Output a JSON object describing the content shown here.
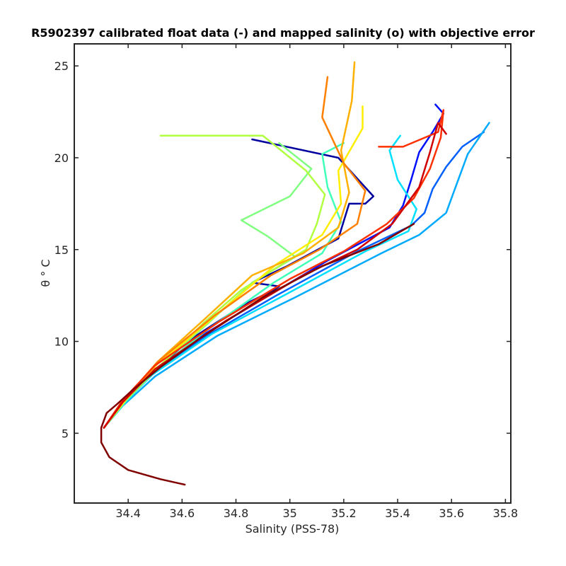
{
  "chart_data": {
    "type": "line",
    "title": "R5902397 calibrated float data (-) and mapped salinity (o) with objective error",
    "xlabel": "Salinity (PSS-78)",
    "ylabel": "θ ° C",
    "xlim": [
      34.2,
      35.82
    ],
    "ylim": [
      1.2,
      26.2
    ],
    "xticks": [
      34.4,
      34.6,
      34.8,
      35,
      35.2,
      35.4,
      35.6,
      35.8
    ],
    "xtick_labels": [
      "34.4",
      "34.6",
      "34.8",
      "35",
      "35.2",
      "35.4",
      "35.6",
      "35.8"
    ],
    "yticks": [
      5,
      10,
      15,
      20,
      25
    ],
    "ytick_labels": [
      "5",
      "10",
      "15",
      "20",
      "25"
    ],
    "grid": false,
    "colormap": "jet (profile number, blue = early, red = late)",
    "series": [
      {
        "color": "#00009f",
        "points": [
          [
            34.31,
            5.3
          ],
          [
            34.37,
            6.5
          ],
          [
            34.47,
            8.0
          ],
          [
            34.62,
            10.0
          ],
          [
            34.83,
            12.0
          ],
          [
            34.94,
            12.8
          ],
          [
            34.96,
            13.0
          ],
          [
            34.86,
            13.2
          ],
          [
            34.99,
            14.1
          ],
          [
            35.18,
            15.6
          ],
          [
            35.22,
            17.5
          ],
          [
            35.28,
            17.5
          ],
          [
            35.31,
            17.9
          ],
          [
            35.18,
            20.0
          ],
          [
            34.86,
            21.0
          ]
        ]
      },
      {
        "color": "#0010ff",
        "points": [
          [
            34.31,
            5.3
          ],
          [
            34.38,
            6.6
          ],
          [
            34.48,
            8.1
          ],
          [
            34.66,
            10.2
          ],
          [
            34.91,
            12.4
          ],
          [
            35.14,
            14.4
          ],
          [
            35.37,
            16.2
          ],
          [
            35.42,
            17.4
          ],
          [
            35.45,
            18.8
          ],
          [
            35.48,
            20.3
          ],
          [
            35.53,
            21.4
          ],
          [
            35.57,
            22.4
          ],
          [
            35.54,
            22.9
          ]
        ]
      },
      {
        "color": "#0060ff",
        "points": [
          [
            34.31,
            5.3
          ],
          [
            34.38,
            6.6
          ],
          [
            34.49,
            8.2
          ],
          [
            34.69,
            10.3
          ],
          [
            34.95,
            12.5
          ],
          [
            35.25,
            14.9
          ],
          [
            35.45,
            16.3
          ],
          [
            35.5,
            17.0
          ],
          [
            35.53,
            18.3
          ],
          [
            35.58,
            19.5
          ],
          [
            35.64,
            20.6
          ],
          [
            35.72,
            21.4
          ]
        ]
      },
      {
        "color": "#00aaff",
        "points": [
          [
            34.31,
            5.3
          ],
          [
            34.38,
            6.5
          ],
          [
            34.5,
            8.1
          ],
          [
            34.73,
            10.3
          ],
          [
            35.02,
            12.4
          ],
          [
            35.34,
            14.8
          ],
          [
            35.48,
            15.8
          ],
          [
            35.58,
            17.0
          ],
          [
            35.62,
            18.6
          ],
          [
            35.66,
            20.2
          ],
          [
            35.74,
            21.9
          ]
        ]
      },
      {
        "color": "#00e0ff",
        "points": [
          [
            34.31,
            5.3
          ],
          [
            34.38,
            6.6
          ],
          [
            34.49,
            8.2
          ],
          [
            34.71,
            10.4
          ],
          [
            34.99,
            12.6
          ],
          [
            35.28,
            14.9
          ],
          [
            35.44,
            16.0
          ],
          [
            35.47,
            17.2
          ],
          [
            35.4,
            18.8
          ],
          [
            35.37,
            20.4
          ],
          [
            35.41,
            21.2
          ]
        ]
      },
      {
        "color": "#40ffb8",
        "points": [
          [
            34.31,
            5.3
          ],
          [
            34.39,
            6.7
          ],
          [
            34.5,
            8.4
          ],
          [
            34.7,
            10.7
          ],
          [
            34.94,
            13.2
          ],
          [
            35.12,
            14.8
          ],
          [
            35.19,
            16.5
          ],
          [
            35.14,
            18.4
          ],
          [
            35.12,
            20.2
          ],
          [
            35.2,
            20.8
          ]
        ]
      },
      {
        "color": "#80ff80",
        "points": [
          [
            34.31,
            5.3
          ],
          [
            34.39,
            6.8
          ],
          [
            34.51,
            8.6
          ],
          [
            34.69,
            10.9
          ],
          [
            34.86,
            13.2
          ],
          [
            35.02,
            14.6
          ],
          [
            34.92,
            15.7
          ],
          [
            34.82,
            16.6
          ],
          [
            35.0,
            17.9
          ],
          [
            35.08,
            19.4
          ],
          [
            34.96,
            20.8
          ]
        ]
      },
      {
        "color": "#b0ff40",
        "points": [
          [
            34.31,
            5.3
          ],
          [
            34.39,
            6.8
          ],
          [
            34.52,
            8.7
          ],
          [
            34.68,
            11.0
          ],
          [
            34.82,
            12.8
          ],
          [
            34.96,
            14.1
          ],
          [
            35.06,
            15.0
          ],
          [
            35.1,
            16.4
          ],
          [
            35.13,
            18.0
          ],
          [
            35.06,
            19.3
          ],
          [
            34.9,
            21.2
          ],
          [
            34.52,
            21.2
          ]
        ]
      },
      {
        "color": "#ffee00",
        "points": [
          [
            34.31,
            5.3
          ],
          [
            34.39,
            6.8
          ],
          [
            34.51,
            8.8
          ],
          [
            34.62,
            10.1
          ],
          [
            34.78,
            12.1
          ],
          [
            34.95,
            14.2
          ],
          [
            35.12,
            15.8
          ],
          [
            35.19,
            17.5
          ],
          [
            35.18,
            19.3
          ],
          [
            35.27,
            21.6
          ],
          [
            35.27,
            22.8
          ]
        ]
      },
      {
        "color": "#ffb000",
        "points": [
          [
            34.31,
            5.3
          ],
          [
            34.39,
            6.9
          ],
          [
            34.51,
            8.9
          ],
          [
            34.69,
            11.3
          ],
          [
            34.86,
            13.6
          ],
          [
            35.05,
            14.8
          ],
          [
            35.18,
            16.2
          ],
          [
            35.22,
            18.1
          ],
          [
            35.19,
            20.4
          ],
          [
            35.23,
            23.1
          ],
          [
            35.24,
            25.2
          ]
        ]
      },
      {
        "color": "#ff8000",
        "points": [
          [
            34.31,
            5.3
          ],
          [
            34.39,
            6.9
          ],
          [
            34.51,
            8.9
          ],
          [
            34.72,
            11.4
          ],
          [
            34.93,
            13.6
          ],
          [
            35.11,
            15.0
          ],
          [
            35.25,
            16.4
          ],
          [
            35.28,
            18.2
          ],
          [
            35.2,
            19.7
          ],
          [
            35.12,
            22.2
          ],
          [
            35.14,
            24.4
          ]
        ]
      },
      {
        "color": "#ff3000",
        "points": [
          [
            34.31,
            5.3
          ],
          [
            34.38,
            6.8
          ],
          [
            34.5,
            8.7
          ],
          [
            34.74,
            11.1
          ],
          [
            35.0,
            13.4
          ],
          [
            35.2,
            14.9
          ],
          [
            35.36,
            16.4
          ],
          [
            35.46,
            17.8
          ],
          [
            35.52,
            19.4
          ],
          [
            35.56,
            21.1
          ],
          [
            35.57,
            22.6
          ],
          [
            35.55,
            21.4
          ],
          [
            35.42,
            20.6
          ],
          [
            35.33,
            20.6
          ]
        ]
      },
      {
        "color": "#d00000",
        "points": [
          [
            34.31,
            5.3
          ],
          [
            34.38,
            6.7
          ],
          [
            34.5,
            8.5
          ],
          [
            34.76,
            11.1
          ],
          [
            35.05,
            13.6
          ],
          [
            35.25,
            15.0
          ],
          [
            35.38,
            16.4
          ],
          [
            35.48,
            18.4
          ],
          [
            35.52,
            20.3
          ],
          [
            35.55,
            21.9
          ],
          [
            35.58,
            21.3
          ]
        ]
      },
      {
        "color": "#800000",
        "points": [
          [
            34.61,
            2.2
          ],
          [
            34.52,
            2.5
          ],
          [
            34.4,
            3.0
          ],
          [
            34.33,
            3.7
          ],
          [
            34.3,
            4.5
          ],
          [
            34.3,
            5.3
          ],
          [
            34.32,
            6.1
          ],
          [
            34.36,
            6.6
          ],
          [
            34.42,
            7.4
          ],
          [
            34.52,
            8.6
          ],
          [
            34.66,
            10.1
          ],
          [
            34.9,
            12.4
          ],
          [
            35.12,
            14.1
          ],
          [
            35.33,
            15.3
          ],
          [
            35.46,
            16.4
          ]
        ]
      }
    ]
  }
}
